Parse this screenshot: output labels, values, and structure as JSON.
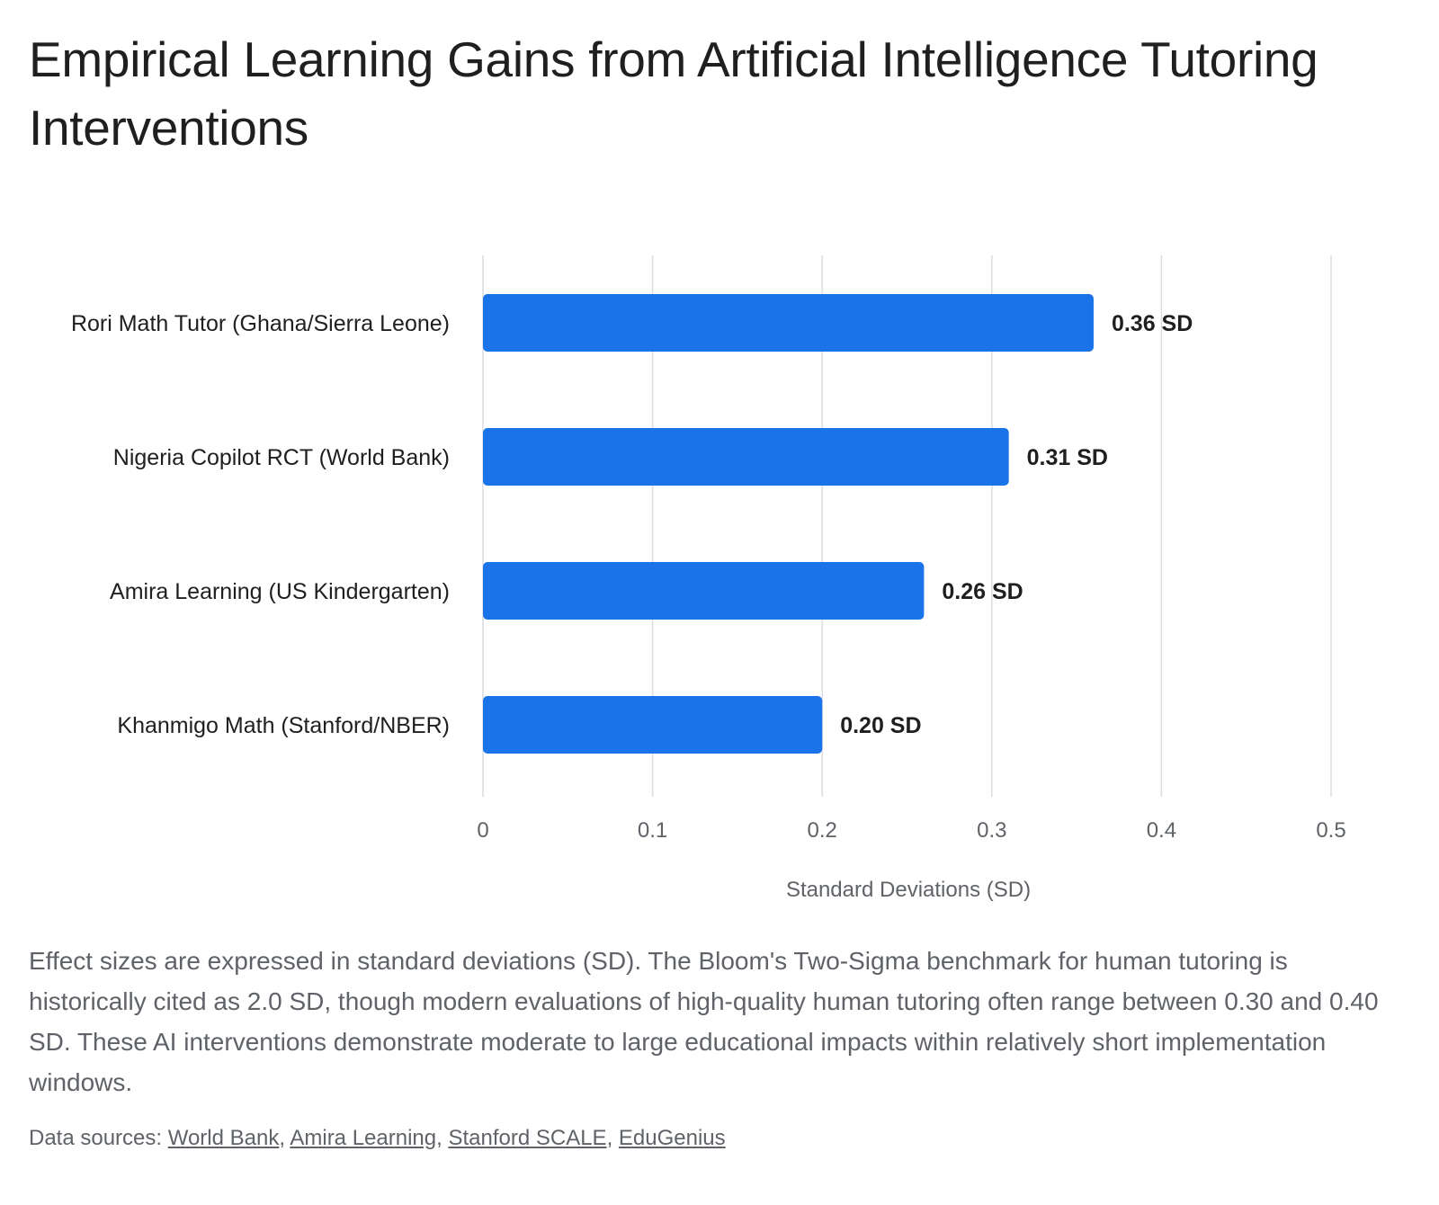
{
  "chart_data": {
    "type": "bar",
    "orientation": "horizontal",
    "title": "Empirical Learning Gains from Artificial Intelligence Tutoring Interventions",
    "categories": [
      "Rori Math Tutor (Ghana/Sierra Leone)",
      "Nigeria Copilot RCT (World Bank)",
      "Amira Learning (US Kindergarten)",
      "Khanmigo Math (Stanford/NBER)"
    ],
    "values": [
      0.36,
      0.31,
      0.26,
      0.2
    ],
    "data_labels": [
      "0.36 SD",
      "0.31 SD",
      "0.26 SD",
      "0.20 SD"
    ],
    "xlabel": "Standard Deviations (SD)",
    "ylabel": "",
    "xlim": [
      0,
      0.5
    ],
    "xticks": [
      0,
      0.1,
      0.2,
      0.3,
      0.4,
      0.5
    ],
    "xtick_labels": [
      "0",
      "0.1",
      "0.2",
      "0.3",
      "0.4",
      "0.5"
    ],
    "grid": "vertical",
    "legend": "none",
    "bar_color": "#1a73e8"
  },
  "note": "Effect sizes are expressed in standard deviations (SD). The Bloom's Two-Sigma benchmark for human tutoring is historically cited as 2.0 SD, though modern evaluations of high-quality human tutoring often range between 0.30 and 0.40 SD. These AI interventions demonstrate moderate to large educational impacts within relatively short implementation windows.",
  "sources": {
    "prefix": "Data sources: ",
    "separator": ", ",
    "links": [
      "World Bank",
      "Amira Learning",
      "Stanford SCALE",
      "EduGenius"
    ]
  },
  "colors": {
    "bar": "#1a73e8",
    "gridline": "#dadce0",
    "text": "#1f1f1f",
    "muted_text": "#5f6368"
  }
}
